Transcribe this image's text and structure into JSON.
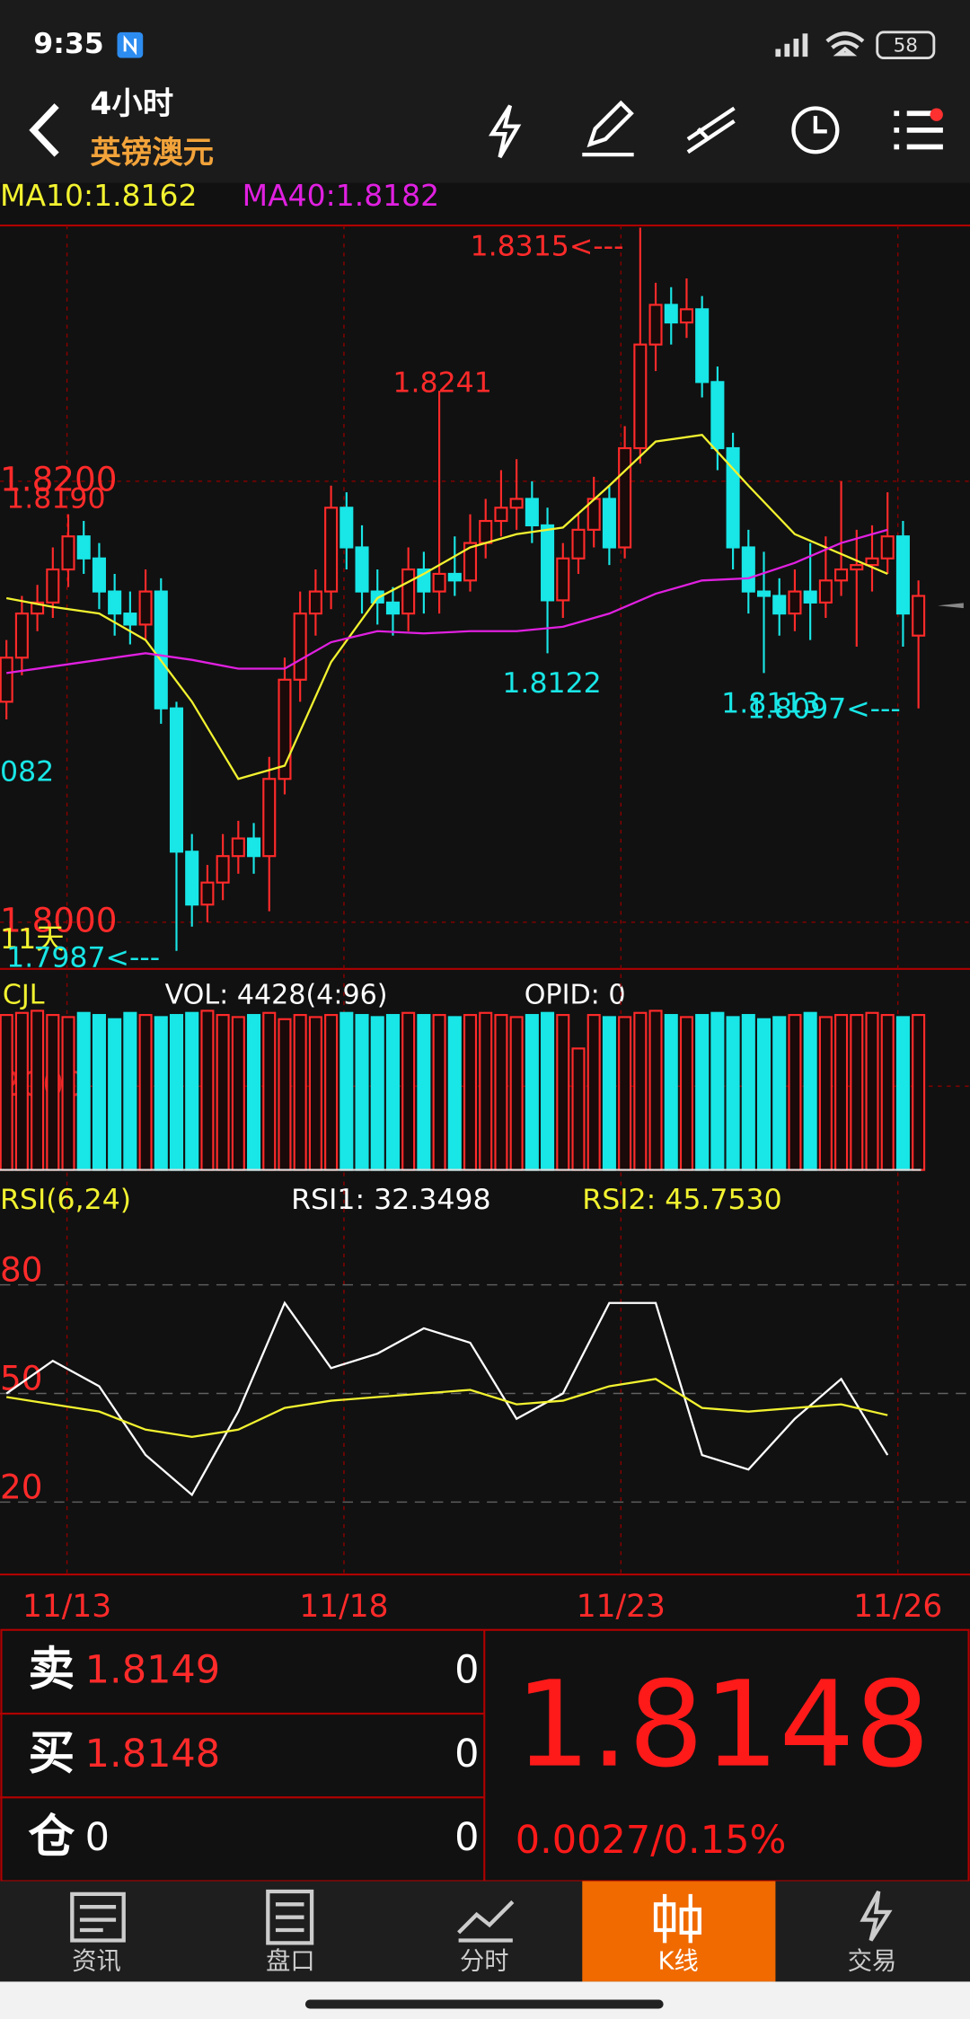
{
  "status_bar": {
    "time": "9:35",
    "battery": "58"
  },
  "header": {
    "period": "4小时",
    "symbol": "英镑澳元"
  },
  "chart_data": {
    "type": "candlestick",
    "up_color": "#ff2a2a",
    "down_color": "#19e6e6",
    "ylim": [
      1.798,
      1.8316
    ],
    "yticks": [
      {
        "value": 1.82,
        "label": "1.8200"
      },
      {
        "value": 1.8,
        "label": "1.8000"
      }
    ],
    "x_labels": [
      "11/13",
      "11/18",
      "11/23",
      "11/26"
    ],
    "indicator_index": [
      0,
      3,
      6,
      9,
      12,
      15,
      18,
      21,
      24,
      27,
      30,
      33,
      36,
      39,
      42,
      45,
      48,
      51,
      54,
      57
    ],
    "indicators": [
      {
        "name": "MA10",
        "label": "MA10:1.8162",
        "color": "#f2f230",
        "values": [
          1.8147,
          1.8143,
          1.814,
          1.8128,
          1.81,
          1.8065,
          1.8071,
          1.8118,
          1.8147,
          1.8158,
          1.817,
          1.8176,
          1.8179,
          1.8198,
          1.8218,
          1.8221,
          1.8198,
          1.8176,
          1.8167,
          1.8158
        ]
      },
      {
        "name": "MA40",
        "label": "MA40:1.8182",
        "color": "#e020e0",
        "values": [
          1.8113,
          1.8116,
          1.8119,
          1.8122,
          1.8119,
          1.8115,
          1.8115,
          1.8127,
          1.8132,
          1.8131,
          1.8132,
          1.8132,
          1.8134,
          1.814,
          1.8149,
          1.8155,
          1.8156,
          1.8163,
          1.8172,
          1.8178
        ]
      }
    ],
    "annotations": [
      {
        "text": "1.8190",
        "color": "#ff2a2a"
      },
      {
        "text": "082",
        "color": "#19e6e6"
      },
      {
        "text": "11天",
        "color": "#f2f230"
      },
      {
        "text": "1.7987<---",
        "color": "#19e6e6"
      },
      {
        "text": "1.8315<---",
        "color": "#ff2a2a"
      },
      {
        "text": "1.8241",
        "color": "#ff2a2a"
      },
      {
        "text": "1.8122",
        "color": "#19e6e6"
      },
      {
        "text": "1.8113",
        "color": "#19e6e6"
      },
      {
        "text": "1.8097<---",
        "color": "#19e6e6"
      }
    ],
    "candles": [
      [
        1.81,
        1.8128,
        1.8092,
        1.812
      ],
      [
        1.812,
        1.8148,
        1.8112,
        1.814
      ],
      [
        1.814,
        1.8153,
        1.8132,
        1.8145
      ],
      [
        1.8145,
        1.817,
        1.8138,
        1.816
      ],
      [
        1.816,
        1.8185,
        1.8152,
        1.8175
      ],
      [
        1.8175,
        1.8182,
        1.8158,
        1.8165
      ],
      [
        1.8165,
        1.8172,
        1.8142,
        1.815
      ],
      [
        1.815,
        1.8158,
        1.813,
        1.814
      ],
      [
        1.814,
        1.815,
        1.8126,
        1.8135
      ],
      [
        1.8135,
        1.816,
        1.8128,
        1.815
      ],
      [
        1.815,
        1.8156,
        1.809,
        1.8097
      ],
      [
        1.8097,
        1.81,
        1.7987,
        1.8032
      ],
      [
        1.8032,
        1.804,
        1.7998,
        1.8008
      ],
      [
        1.8008,
        1.8026,
        1.8,
        1.8018
      ],
      [
        1.8018,
        1.804,
        1.801,
        1.803
      ],
      [
        1.803,
        1.8046,
        1.8022,
        1.8038
      ],
      [
        1.8038,
        1.8045,
        1.8022,
        1.803
      ],
      [
        1.803,
        1.8075,
        1.8005,
        1.8065
      ],
      [
        1.8065,
        1.812,
        1.8058,
        1.811
      ],
      [
        1.811,
        1.815,
        1.81,
        1.814
      ],
      [
        1.814,
        1.816,
        1.813,
        1.815
      ],
      [
        1.815,
        1.8198,
        1.8142,
        1.8188
      ],
      [
        1.8188,
        1.8195,
        1.816,
        1.817
      ],
      [
        1.817,
        1.818,
        1.814,
        1.815
      ],
      [
        1.815,
        1.816,
        1.8135,
        1.8145
      ],
      [
        1.8145,
        1.8152,
        1.813,
        1.814
      ],
      [
        1.814,
        1.817,
        1.8132,
        1.816
      ],
      [
        1.816,
        1.8168,
        1.814,
        1.815
      ],
      [
        1.815,
        1.8241,
        1.814,
        1.8158
      ],
      [
        1.8158,
        1.8175,
        1.8148,
        1.8155
      ],
      [
        1.8155,
        1.8185,
        1.815,
        1.8172
      ],
      [
        1.8172,
        1.8192,
        1.8165,
        1.8182
      ],
      [
        1.8182,
        1.8205,
        1.8175,
        1.8188
      ],
      [
        1.8188,
        1.821,
        1.8178,
        1.8192
      ],
      [
        1.8192,
        1.82,
        1.8172,
        1.818
      ],
      [
        1.818,
        1.8188,
        1.8122,
        1.8146
      ],
      [
        1.8146,
        1.8172,
        1.8138,
        1.8165
      ],
      [
        1.8165,
        1.8185,
        1.8158,
        1.8178
      ],
      [
        1.8178,
        1.8202,
        1.817,
        1.8192
      ],
      [
        1.8192,
        1.8198,
        1.8162,
        1.817
      ],
      [
        1.817,
        1.8225,
        1.8165,
        1.8215
      ],
      [
        1.8215,
        1.8315,
        1.8208,
        1.8262
      ],
      [
        1.8262,
        1.829,
        1.825,
        1.828
      ],
      [
        1.828,
        1.8288,
        1.8262,
        1.8272
      ],
      [
        1.8272,
        1.8292,
        1.8265,
        1.8278
      ],
      [
        1.8278,
        1.8284,
        1.8238,
        1.8245
      ],
      [
        1.8245,
        1.8252,
        1.8205,
        1.8215
      ],
      [
        1.8215,
        1.8222,
        1.816,
        1.817
      ],
      [
        1.817,
        1.8178,
        1.814,
        1.815
      ],
      [
        1.815,
        1.8168,
        1.8113,
        1.8148
      ],
      [
        1.8148,
        1.8156,
        1.813,
        1.814
      ],
      [
        1.814,
        1.816,
        1.8132,
        1.815
      ],
      [
        1.815,
        1.8172,
        1.8128,
        1.8145
      ],
      [
        1.8145,
        1.8175,
        1.8138,
        1.8155
      ],
      [
        1.8155,
        1.82,
        1.8148,
        1.816
      ],
      [
        1.816,
        1.8178,
        1.8125,
        1.8162
      ],
      [
        1.8162,
        1.818,
        1.815,
        1.8165
      ],
      [
        1.8165,
        1.8195,
        1.8158,
        1.8175
      ],
      [
        1.8175,
        1.8182,
        1.8125,
        1.814
      ],
      [
        1.813,
        1.8155,
        1.8097,
        1.8148
      ]
    ]
  },
  "volume": {
    "title": "CJL",
    "vol": "VOL: 4428(4:96)",
    "opid": "OPID: 0",
    "ylim": [
      0,
      4000
    ],
    "yticks": [
      2000
    ],
    "values": [
      3700,
      3750,
      3800,
      3700,
      3650,
      3750,
      3700,
      3600,
      3750,
      3700,
      3650,
      3700,
      3750,
      3800,
      3700,
      3650,
      3700,
      3750,
      3600,
      3700,
      3650,
      3700,
      3750,
      3700,
      3650,
      3700,
      3750,
      3700,
      3700,
      3650,
      3700,
      3750,
      3700,
      3650,
      3700,
      3750,
      3700,
      2900,
      3700,
      3650,
      3650,
      3750,
      3800,
      3700,
      3650,
      3700,
      3750,
      3650,
      3700,
      3600,
      3650,
      3700,
      3750,
      3650,
      3700,
      3700,
      3750,
      3700,
      3650,
      3700
    ]
  },
  "rsi": {
    "title": "RSI(6,24)",
    "ylim": [
      0,
      100
    ],
    "yticks": [
      80,
      50,
      20
    ],
    "series": [
      {
        "name": "RSI1: 32.3498",
        "color": "#ffffff",
        "values": [
          50,
          59,
          52,
          33,
          22,
          45,
          75,
          57,
          61,
          68,
          64,
          43,
          50,
          75,
          75,
          33,
          29,
          43,
          54,
          33
        ]
      },
      {
        "name": "RSI2: 45.7530",
        "color": "#f2f230",
        "values": [
          49,
          47,
          45,
          40,
          38,
          40,
          46,
          48,
          49,
          50,
          51,
          47,
          48,
          52,
          54,
          46,
          45,
          46,
          47,
          44
        ]
      }
    ]
  },
  "quote": {
    "rows": [
      [
        "卖",
        "1.8149",
        "0"
      ],
      [
        "买",
        "1.8148",
        "0"
      ],
      [
        "仓",
        "0",
        "0"
      ]
    ],
    "price": "1.8148",
    "change": "0.0027/0.15%"
  },
  "tabs": [
    "资讯",
    "盘口",
    "分时",
    "K线",
    "交易"
  ]
}
